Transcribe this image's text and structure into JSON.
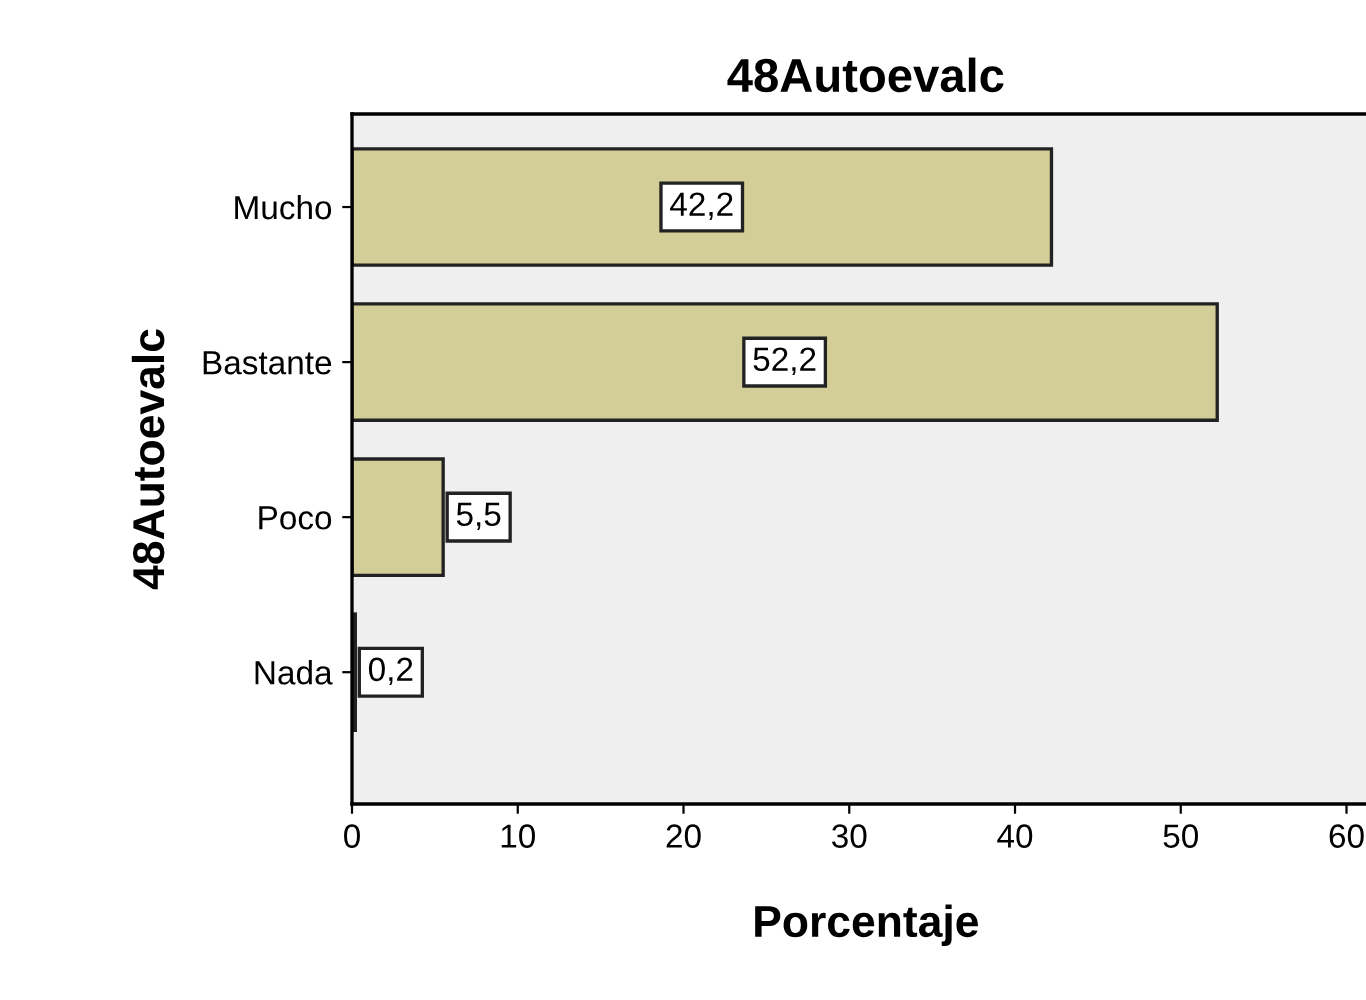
{
  "chart_data": {
    "type": "bar",
    "orientation": "horizontal",
    "title": "48Autoevalc",
    "xlabel": "Porcentaje",
    "ylabel": "48Autoevalc",
    "categories": [
      "Mucho",
      "Bastante",
      "Poco",
      "Nada"
    ],
    "values": [
      42.2,
      52.2,
      5.5,
      0.2
    ],
    "value_labels": [
      "42,2",
      "52,2",
      "5,5",
      "0,2"
    ],
    "color": "#d3ce97",
    "xlim": [
      0,
      62
    ],
    "xticks": [
      0,
      10,
      20,
      30,
      40,
      50,
      60
    ],
    "grid": false,
    "legend": false
  }
}
